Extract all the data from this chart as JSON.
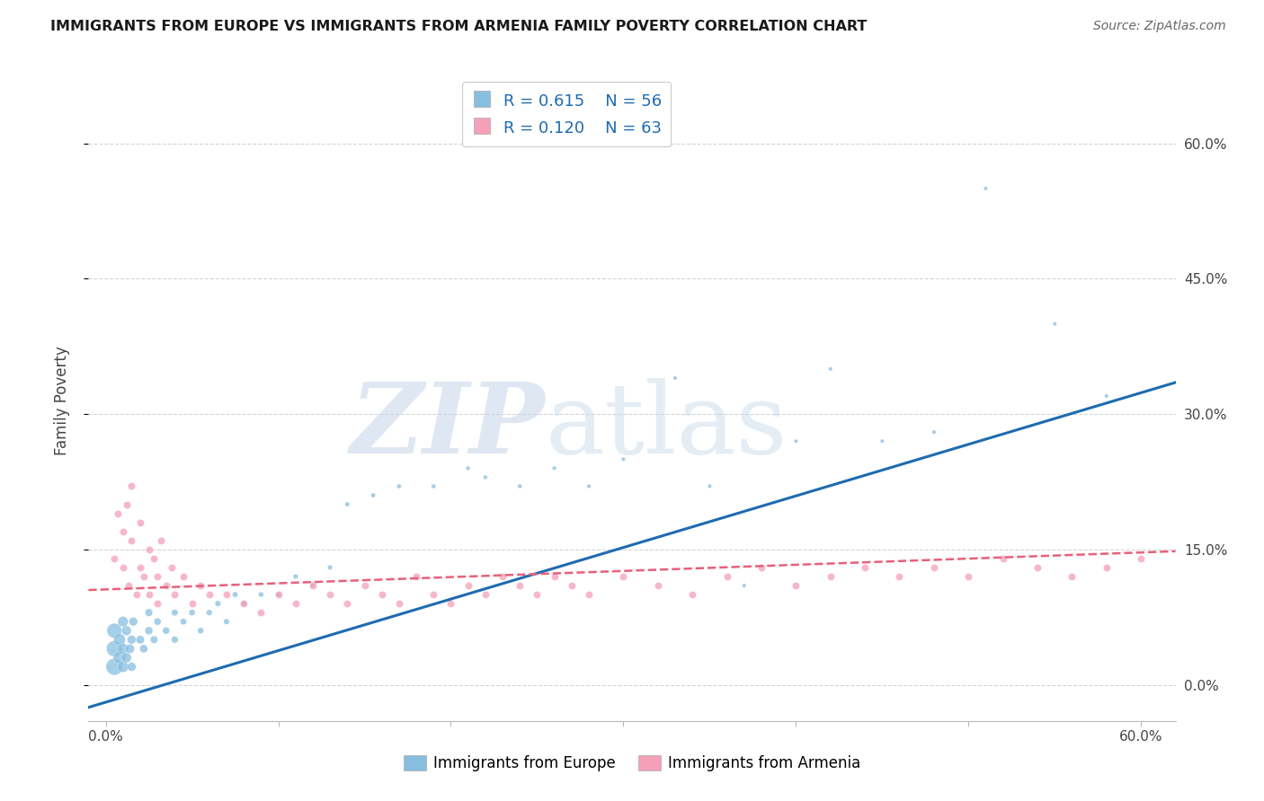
{
  "title": "IMMIGRANTS FROM EUROPE VS IMMIGRANTS FROM ARMENIA FAMILY POVERTY CORRELATION CHART",
  "source": "Source: ZipAtlas.com",
  "ylabel": "Family Poverty",
  "xlim": [
    -0.01,
    0.62
  ],
  "ylim": [
    -0.04,
    0.67
  ],
  "x_ticks": [
    0.0,
    0.1,
    0.2,
    0.3,
    0.4,
    0.5,
    0.6
  ],
  "x_tick_labels": [
    "0.0%",
    "",
    "",
    "",
    "",
    "",
    "60.0%"
  ],
  "y_ticks_right": [
    0.0,
    0.15,
    0.3,
    0.45,
    0.6
  ],
  "y_tick_labels_right": [
    "0.0%",
    "15.0%",
    "30.0%",
    "45.0%",
    "60.0%"
  ],
  "blue_color": "#87BEDF",
  "pink_color": "#F4A0B8",
  "blue_line_color": "#1E6BB0",
  "pink_line_color": "#E8607A",
  "watermark_zip": "ZIP",
  "watermark_atlas": "atlas",
  "legend_R1": "R = 0.615",
  "legend_N1": "N = 56",
  "legend_R2": "R = 0.120",
  "legend_N2": "N = 63",
  "series1_label": "Immigrants from Europe",
  "series2_label": "Immigrants from Armenia",
  "blue_scatter_x": [
    0.005,
    0.005,
    0.005,
    0.008,
    0.008,
    0.01,
    0.01,
    0.01,
    0.012,
    0.012,
    0.014,
    0.015,
    0.015,
    0.016,
    0.02,
    0.022,
    0.025,
    0.025,
    0.028,
    0.03,
    0.035,
    0.04,
    0.04,
    0.045,
    0.05,
    0.055,
    0.06,
    0.065,
    0.07,
    0.075,
    0.08,
    0.09,
    0.1,
    0.11,
    0.12,
    0.13,
    0.14,
    0.155,
    0.17,
    0.19,
    0.21,
    0.22,
    0.24,
    0.26,
    0.28,
    0.3,
    0.33,
    0.35,
    0.37,
    0.4,
    0.42,
    0.45,
    0.48,
    0.51,
    0.55,
    0.58
  ],
  "blue_scatter_y": [
    0.02,
    0.04,
    0.06,
    0.03,
    0.05,
    0.02,
    0.04,
    0.07,
    0.03,
    0.06,
    0.04,
    0.02,
    0.05,
    0.07,
    0.05,
    0.04,
    0.06,
    0.08,
    0.05,
    0.07,
    0.06,
    0.05,
    0.08,
    0.07,
    0.08,
    0.06,
    0.08,
    0.09,
    0.07,
    0.1,
    0.09,
    0.1,
    0.1,
    0.12,
    0.11,
    0.13,
    0.2,
    0.21,
    0.22,
    0.22,
    0.24,
    0.23,
    0.22,
    0.24,
    0.22,
    0.25,
    0.34,
    0.22,
    0.11,
    0.27,
    0.35,
    0.27,
    0.28,
    0.55,
    0.4,
    0.32
  ],
  "blue_scatter_size": [
    180,
    160,
    140,
    100,
    90,
    80,
    75,
    70,
    65,
    60,
    55,
    50,
    50,
    48,
    45,
    42,
    40,
    38,
    36,
    34,
    32,
    30,
    28,
    26,
    25,
    24,
    23,
    22,
    21,
    20,
    19,
    18,
    17,
    16,
    15,
    15,
    14,
    14,
    13,
    13,
    12,
    12,
    12,
    11,
    11,
    11,
    10,
    10,
    10,
    10,
    10,
    10,
    10,
    10,
    10,
    10
  ],
  "pink_scatter_x": [
    0.005,
    0.007,
    0.01,
    0.01,
    0.012,
    0.013,
    0.015,
    0.015,
    0.018,
    0.02,
    0.02,
    0.022,
    0.025,
    0.025,
    0.028,
    0.03,
    0.03,
    0.032,
    0.035,
    0.038,
    0.04,
    0.045,
    0.05,
    0.055,
    0.06,
    0.07,
    0.08,
    0.09,
    0.1,
    0.11,
    0.12,
    0.13,
    0.14,
    0.15,
    0.16,
    0.17,
    0.18,
    0.19,
    0.2,
    0.21,
    0.22,
    0.23,
    0.24,
    0.25,
    0.26,
    0.27,
    0.28,
    0.3,
    0.32,
    0.34,
    0.36,
    0.38,
    0.4,
    0.42,
    0.44,
    0.46,
    0.48,
    0.5,
    0.52,
    0.54,
    0.56,
    0.58,
    0.6
  ],
  "pink_scatter_y": [
    0.14,
    0.19,
    0.13,
    0.17,
    0.2,
    0.11,
    0.16,
    0.22,
    0.1,
    0.13,
    0.18,
    0.12,
    0.15,
    0.1,
    0.14,
    0.09,
    0.12,
    0.16,
    0.11,
    0.13,
    0.1,
    0.12,
    0.09,
    0.11,
    0.1,
    0.1,
    0.09,
    0.08,
    0.1,
    0.09,
    0.11,
    0.1,
    0.09,
    0.11,
    0.1,
    0.09,
    0.12,
    0.1,
    0.09,
    0.11,
    0.1,
    0.12,
    0.11,
    0.1,
    0.12,
    0.11,
    0.1,
    0.12,
    0.11,
    0.1,
    0.12,
    0.13,
    0.11,
    0.12,
    0.13,
    0.12,
    0.13,
    0.12,
    0.14,
    0.13,
    0.12,
    0.13,
    0.14
  ],
  "blue_line_x": [
    -0.01,
    0.62
  ],
  "blue_line_y": [
    -0.025,
    0.335
  ],
  "pink_line_x": [
    -0.01,
    0.62
  ],
  "pink_line_y": [
    0.105,
    0.148
  ],
  "background_color": "#ffffff",
  "grid_color": "#d0d0d0"
}
